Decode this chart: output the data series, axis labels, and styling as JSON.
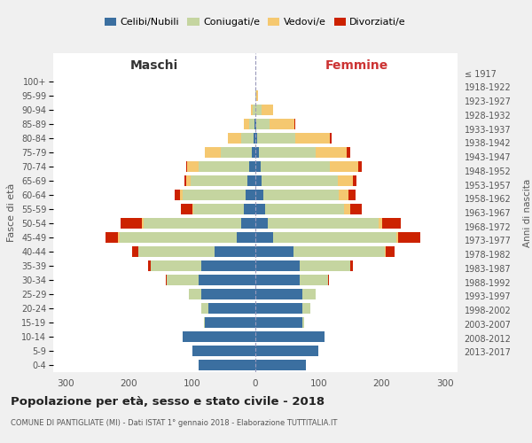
{
  "age_groups": [
    "0-4",
    "5-9",
    "10-14",
    "15-19",
    "20-24",
    "25-29",
    "30-34",
    "35-39",
    "40-44",
    "45-49",
    "50-54",
    "55-59",
    "60-64",
    "65-69",
    "70-74",
    "75-79",
    "80-84",
    "85-89",
    "90-94",
    "95-99",
    "100+"
  ],
  "birth_years": [
    "2013-2017",
    "2008-2012",
    "2003-2007",
    "1998-2002",
    "1993-1997",
    "1988-1992",
    "1983-1987",
    "1978-1982",
    "1973-1977",
    "1968-1972",
    "1963-1967",
    "1958-1962",
    "1953-1957",
    "1948-1952",
    "1943-1947",
    "1938-1942",
    "1933-1937",
    "1928-1932",
    "1923-1927",
    "1918-1922",
    "≤ 1917"
  ],
  "maschi_celibi": [
    90,
    100,
    115,
    80,
    75,
    85,
    90,
    85,
    65,
    30,
    22,
    18,
    15,
    12,
    10,
    5,
    3,
    2,
    0,
    0,
    0
  ],
  "maschi_coniugati": [
    0,
    0,
    0,
    2,
    10,
    20,
    50,
    80,
    120,
    185,
    155,
    80,
    100,
    90,
    80,
    50,
    20,
    8,
    4,
    0,
    0
  ],
  "maschi_vedovi": [
    0,
    0,
    0,
    0,
    1,
    0,
    0,
    0,
    0,
    2,
    2,
    2,
    5,
    8,
    18,
    25,
    20,
    8,
    3,
    0,
    0
  ],
  "maschi_divorziati": [
    0,
    0,
    0,
    0,
    0,
    0,
    2,
    5,
    10,
    20,
    35,
    18,
    8,
    2,
    2,
    0,
    1,
    0,
    0,
    0,
    0
  ],
  "femmine_celibi": [
    80,
    100,
    110,
    75,
    75,
    75,
    70,
    70,
    60,
    28,
    20,
    15,
    12,
    10,
    8,
    5,
    3,
    2,
    0,
    0,
    0
  ],
  "femmine_coniugati": [
    0,
    0,
    0,
    2,
    12,
    20,
    45,
    80,
    145,
    195,
    175,
    125,
    120,
    120,
    110,
    90,
    60,
    20,
    10,
    2,
    0
  ],
  "femmine_vedovi": [
    0,
    0,
    0,
    0,
    0,
    0,
    0,
    0,
    1,
    3,
    5,
    10,
    15,
    25,
    45,
    50,
    55,
    40,
    18,
    2,
    0
  ],
  "femmine_divorziati": [
    0,
    0,
    0,
    0,
    0,
    0,
    2,
    5,
    15,
    35,
    30,
    18,
    12,
    5,
    5,
    5,
    2,
    1,
    0,
    0,
    0
  ],
  "colors": {
    "celibi": "#3b6fa0",
    "coniugati": "#c5d5a0",
    "vedovi": "#f5c870",
    "divorziati": "#cc2200"
  },
  "title": "Popolazione per età, sesso e stato civile - 2018",
  "subtitle": "COMUNE DI PANTIGLIATE (MI) - Dati ISTAT 1° gennaio 2018 - Elaborazione TUTTITALIA.IT",
  "xlabel_left": "Maschi",
  "xlabel_right": "Femmine",
  "ylabel_left": "Fasce di età",
  "ylabel_right": "Anni di nascita",
  "legend_labels": [
    "Celibi/Nubili",
    "Coniugati/e",
    "Vedovi/e",
    "Divorziati/e"
  ],
  "xlim": 320,
  "background_color": "#ffffff"
}
